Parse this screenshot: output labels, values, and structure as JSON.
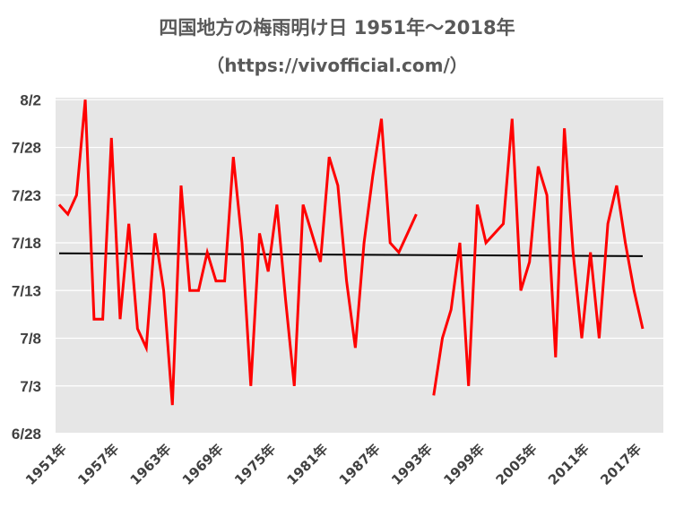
{
  "chart_data": {
    "type": "line",
    "title": "四国地方の梅雨明け日 1951年～2018年",
    "subtitle": "（https://vivofficial.com/）",
    "xlabel": "",
    "ylabel": "",
    "x_range": [
      1951,
      2018
    ],
    "y_range": [
      "6/28",
      "8/2"
    ],
    "y_ticks": [
      "6/28",
      "7/3",
      "7/8",
      "7/13",
      "7/18",
      "7/23",
      "7/28",
      "8/2"
    ],
    "x_tick_labels": [
      "1951年",
      "1957年",
      "1963年",
      "1969年",
      "1975年",
      "1981年",
      "1987年",
      "1993年",
      "1999年",
      "2005年",
      "2011年",
      "2017年"
    ],
    "x_tick_years": [
      1951,
      1957,
      1963,
      1969,
      1975,
      1981,
      1987,
      1993,
      1999,
      2005,
      2011,
      2017
    ],
    "grid": true,
    "legend": "none",
    "colors": {
      "series": "#ff0000",
      "trend": "#000000",
      "plot_bg": "#e6e6e6",
      "grid": "#ffffff"
    },
    "series": [
      {
        "values": [
          {
            "x": 1951,
            "y": "7/22"
          },
          {
            "x": 1952,
            "y": "7/21"
          },
          {
            "x": 1953,
            "y": "7/23"
          },
          {
            "x": 1954,
            "y": "8/2"
          },
          {
            "x": 1955,
            "y": "7/10"
          },
          {
            "x": 1956,
            "y": "7/10"
          },
          {
            "x": 1957,
            "y": "7/29"
          },
          {
            "x": 1958,
            "y": "7/10"
          },
          {
            "x": 1959,
            "y": "7/20"
          },
          {
            "x": 1960,
            "y": "7/9"
          },
          {
            "x": 1961,
            "y": "7/7"
          },
          {
            "x": 1962,
            "y": "7/19"
          },
          {
            "x": 1963,
            "y": "7/13"
          },
          {
            "x": 1964,
            "y": "7/1"
          },
          {
            "x": 1965,
            "y": "7/24"
          },
          {
            "x": 1966,
            "y": "7/13"
          },
          {
            "x": 1967,
            "y": "7/13"
          },
          {
            "x": 1968,
            "y": "7/17"
          },
          {
            "x": 1969,
            "y": "7/14"
          },
          {
            "x": 1970,
            "y": "7/14"
          },
          {
            "x": 1971,
            "y": "7/27"
          },
          {
            "x": 1972,
            "y": "7/18"
          },
          {
            "x": 1973,
            "y": "7/3"
          },
          {
            "x": 1974,
            "y": "7/19"
          },
          {
            "x": 1975,
            "y": "7/15"
          },
          {
            "x": 1976,
            "y": "7/22"
          },
          {
            "x": 1977,
            "y": "7/12"
          },
          {
            "x": 1978,
            "y": "7/3"
          },
          {
            "x": 1979,
            "y": "7/22"
          },
          {
            "x": 1980,
            "y": "7/19"
          },
          {
            "x": 1981,
            "y": "7/16"
          },
          {
            "x": 1982,
            "y": "7/27"
          },
          {
            "x": 1983,
            "y": "7/24"
          },
          {
            "x": 1984,
            "y": "7/14"
          },
          {
            "x": 1985,
            "y": "7/7"
          },
          {
            "x": 1986,
            "y": "7/18"
          },
          {
            "x": 1987,
            "y": "7/25"
          },
          {
            "x": 1988,
            "y": "7/31"
          },
          {
            "x": 1989,
            "y": "7/18"
          },
          {
            "x": 1990,
            "y": "7/17"
          },
          {
            "x": 1991,
            "y": "7/19"
          },
          {
            "x": 1992,
            "y": "7/21"
          },
          {
            "x": 1993,
            "y": null
          },
          {
            "x": 1994,
            "y": "7/2"
          },
          {
            "x": 1995,
            "y": "7/8"
          },
          {
            "x": 1996,
            "y": "7/11"
          },
          {
            "x": 1997,
            "y": "7/18"
          },
          {
            "x": 1998,
            "y": "7/3"
          },
          {
            "x": 1999,
            "y": "7/22"
          },
          {
            "x": 2000,
            "y": "7/18"
          },
          {
            "x": 2001,
            "y": "7/19"
          },
          {
            "x": 2002,
            "y": "7/20"
          },
          {
            "x": 2003,
            "y": "7/31"
          },
          {
            "x": 2004,
            "y": "7/13"
          },
          {
            "x": 2005,
            "y": "7/16"
          },
          {
            "x": 2006,
            "y": "7/26"
          },
          {
            "x": 2007,
            "y": "7/23"
          },
          {
            "x": 2008,
            "y": "7/6"
          },
          {
            "x": 2009,
            "y": "7/30"
          },
          {
            "x": 2010,
            "y": "7/17"
          },
          {
            "x": 2011,
            "y": "7/8"
          },
          {
            "x": 2012,
            "y": "7/17"
          },
          {
            "x": 2013,
            "y": "7/8"
          },
          {
            "x": 2014,
            "y": "7/20"
          },
          {
            "x": 2015,
            "y": "7/24"
          },
          {
            "x": 2016,
            "y": "7/18"
          },
          {
            "x": 2017,
            "y": "7/13"
          },
          {
            "x": 2018,
            "y": "7/9"
          }
        ]
      }
    ],
    "trendline": [
      {
        "x": 1951,
        "y": "7/16.9"
      },
      {
        "x": 2018,
        "y": "7/16.6"
      }
    ]
  }
}
